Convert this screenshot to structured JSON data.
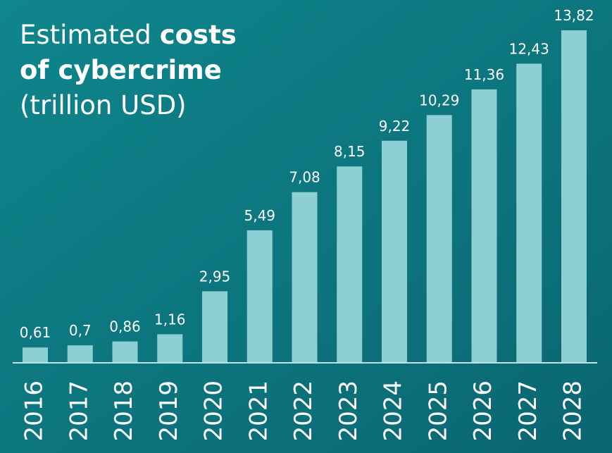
{
  "chart_data": {
    "type": "bar",
    "title_parts": [
      "Estimated",
      "costs",
      "of cybercrime",
      "(trillion USD)"
    ],
    "categories": [
      "2016",
      "2017",
      "2018",
      "2019",
      "2020",
      "2021",
      "2022",
      "2023",
      "2024",
      "2025",
      "2026",
      "2027",
      "2028"
    ],
    "values": [
      0.61,
      0.7,
      0.86,
      1.16,
      2.95,
      5.49,
      7.08,
      8.15,
      9.22,
      10.29,
      11.36,
      12.43,
      13.82
    ],
    "value_labels": [
      "0,61",
      "0,7",
      "0,86",
      "1,16",
      "2,95",
      "5,49",
      "7,08",
      "8,15",
      "9,22",
      "10,29",
      "11,36",
      "12,43",
      "13,82"
    ],
    "color": "#8ecfd3",
    "ylim": [
      0,
      14
    ]
  }
}
